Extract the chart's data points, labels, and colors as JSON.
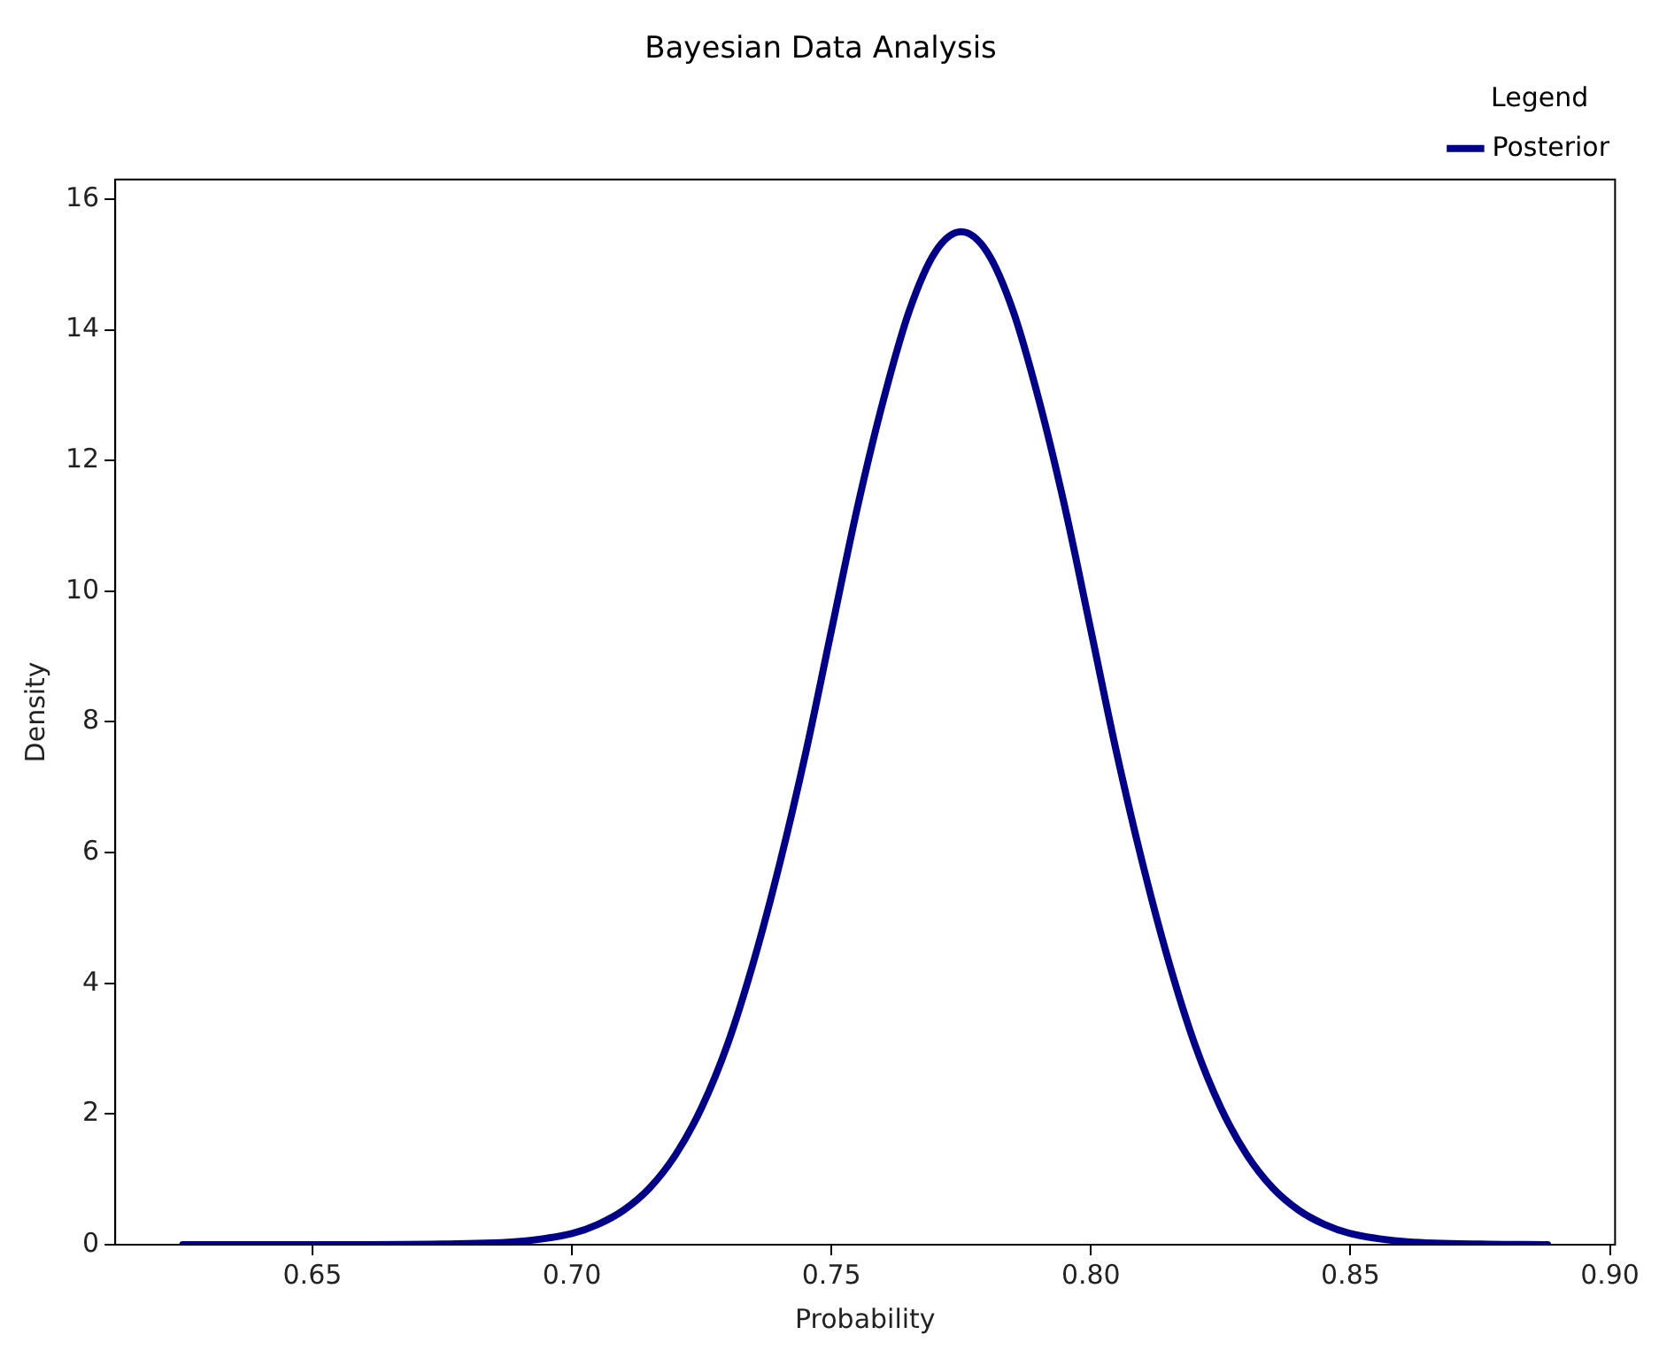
{
  "chart_data": {
    "type": "line",
    "title": "Bayesian Data Analysis",
    "xlabel": "Probability",
    "ylabel": "Density",
    "legend_title": "Legend",
    "legend": "top right",
    "grid": false,
    "marker": "none",
    "line_style": "solid",
    "xlim": [
      0.612,
      0.901
    ],
    "ylim": [
      0,
      16.3
    ],
    "xticks": [
      {
        "value": 0.65,
        "label": "0.65"
      },
      {
        "value": 0.7,
        "label": "0.70"
      },
      {
        "value": 0.75,
        "label": "0.75"
      },
      {
        "value": 0.8,
        "label": "0.80"
      },
      {
        "value": 0.85,
        "label": "0.85"
      },
      {
        "value": 0.9,
        "label": "0.90"
      }
    ],
    "yticks": [
      0,
      2,
      4,
      6,
      8,
      10,
      12,
      14,
      16
    ],
    "x": [
      0.625,
      0.65,
      0.675,
      0.69,
      0.7,
      0.705,
      0.71,
      0.715,
      0.72,
      0.725,
      0.73,
      0.735,
      0.74,
      0.745,
      0.75,
      0.755,
      0.76,
      0.765,
      0.77,
      0.775,
      0.78,
      0.785,
      0.79,
      0.795,
      0.8,
      0.805,
      0.81,
      0.815,
      0.82,
      0.825,
      0.83,
      0.835,
      0.84,
      0.845,
      0.85,
      0.86,
      0.875,
      0.888
    ],
    "series": [
      {
        "name": "Posterior",
        "color": "#00008b",
        "values": [
          0,
          0,
          0.01,
          0.05,
          0.17,
          0.31,
          0.53,
          0.87,
          1.38,
          2.1,
          3.07,
          4.33,
          5.82,
          7.51,
          9.4,
          11.28,
          12.92,
          14.29,
          15.19,
          15.5,
          15.19,
          14.29,
          12.92,
          11.28,
          9.4,
          7.51,
          5.82,
          4.33,
          3.07,
          2.1,
          1.38,
          0.87,
          0.53,
          0.31,
          0.17,
          0.05,
          0.01,
          0
        ]
      }
    ]
  }
}
